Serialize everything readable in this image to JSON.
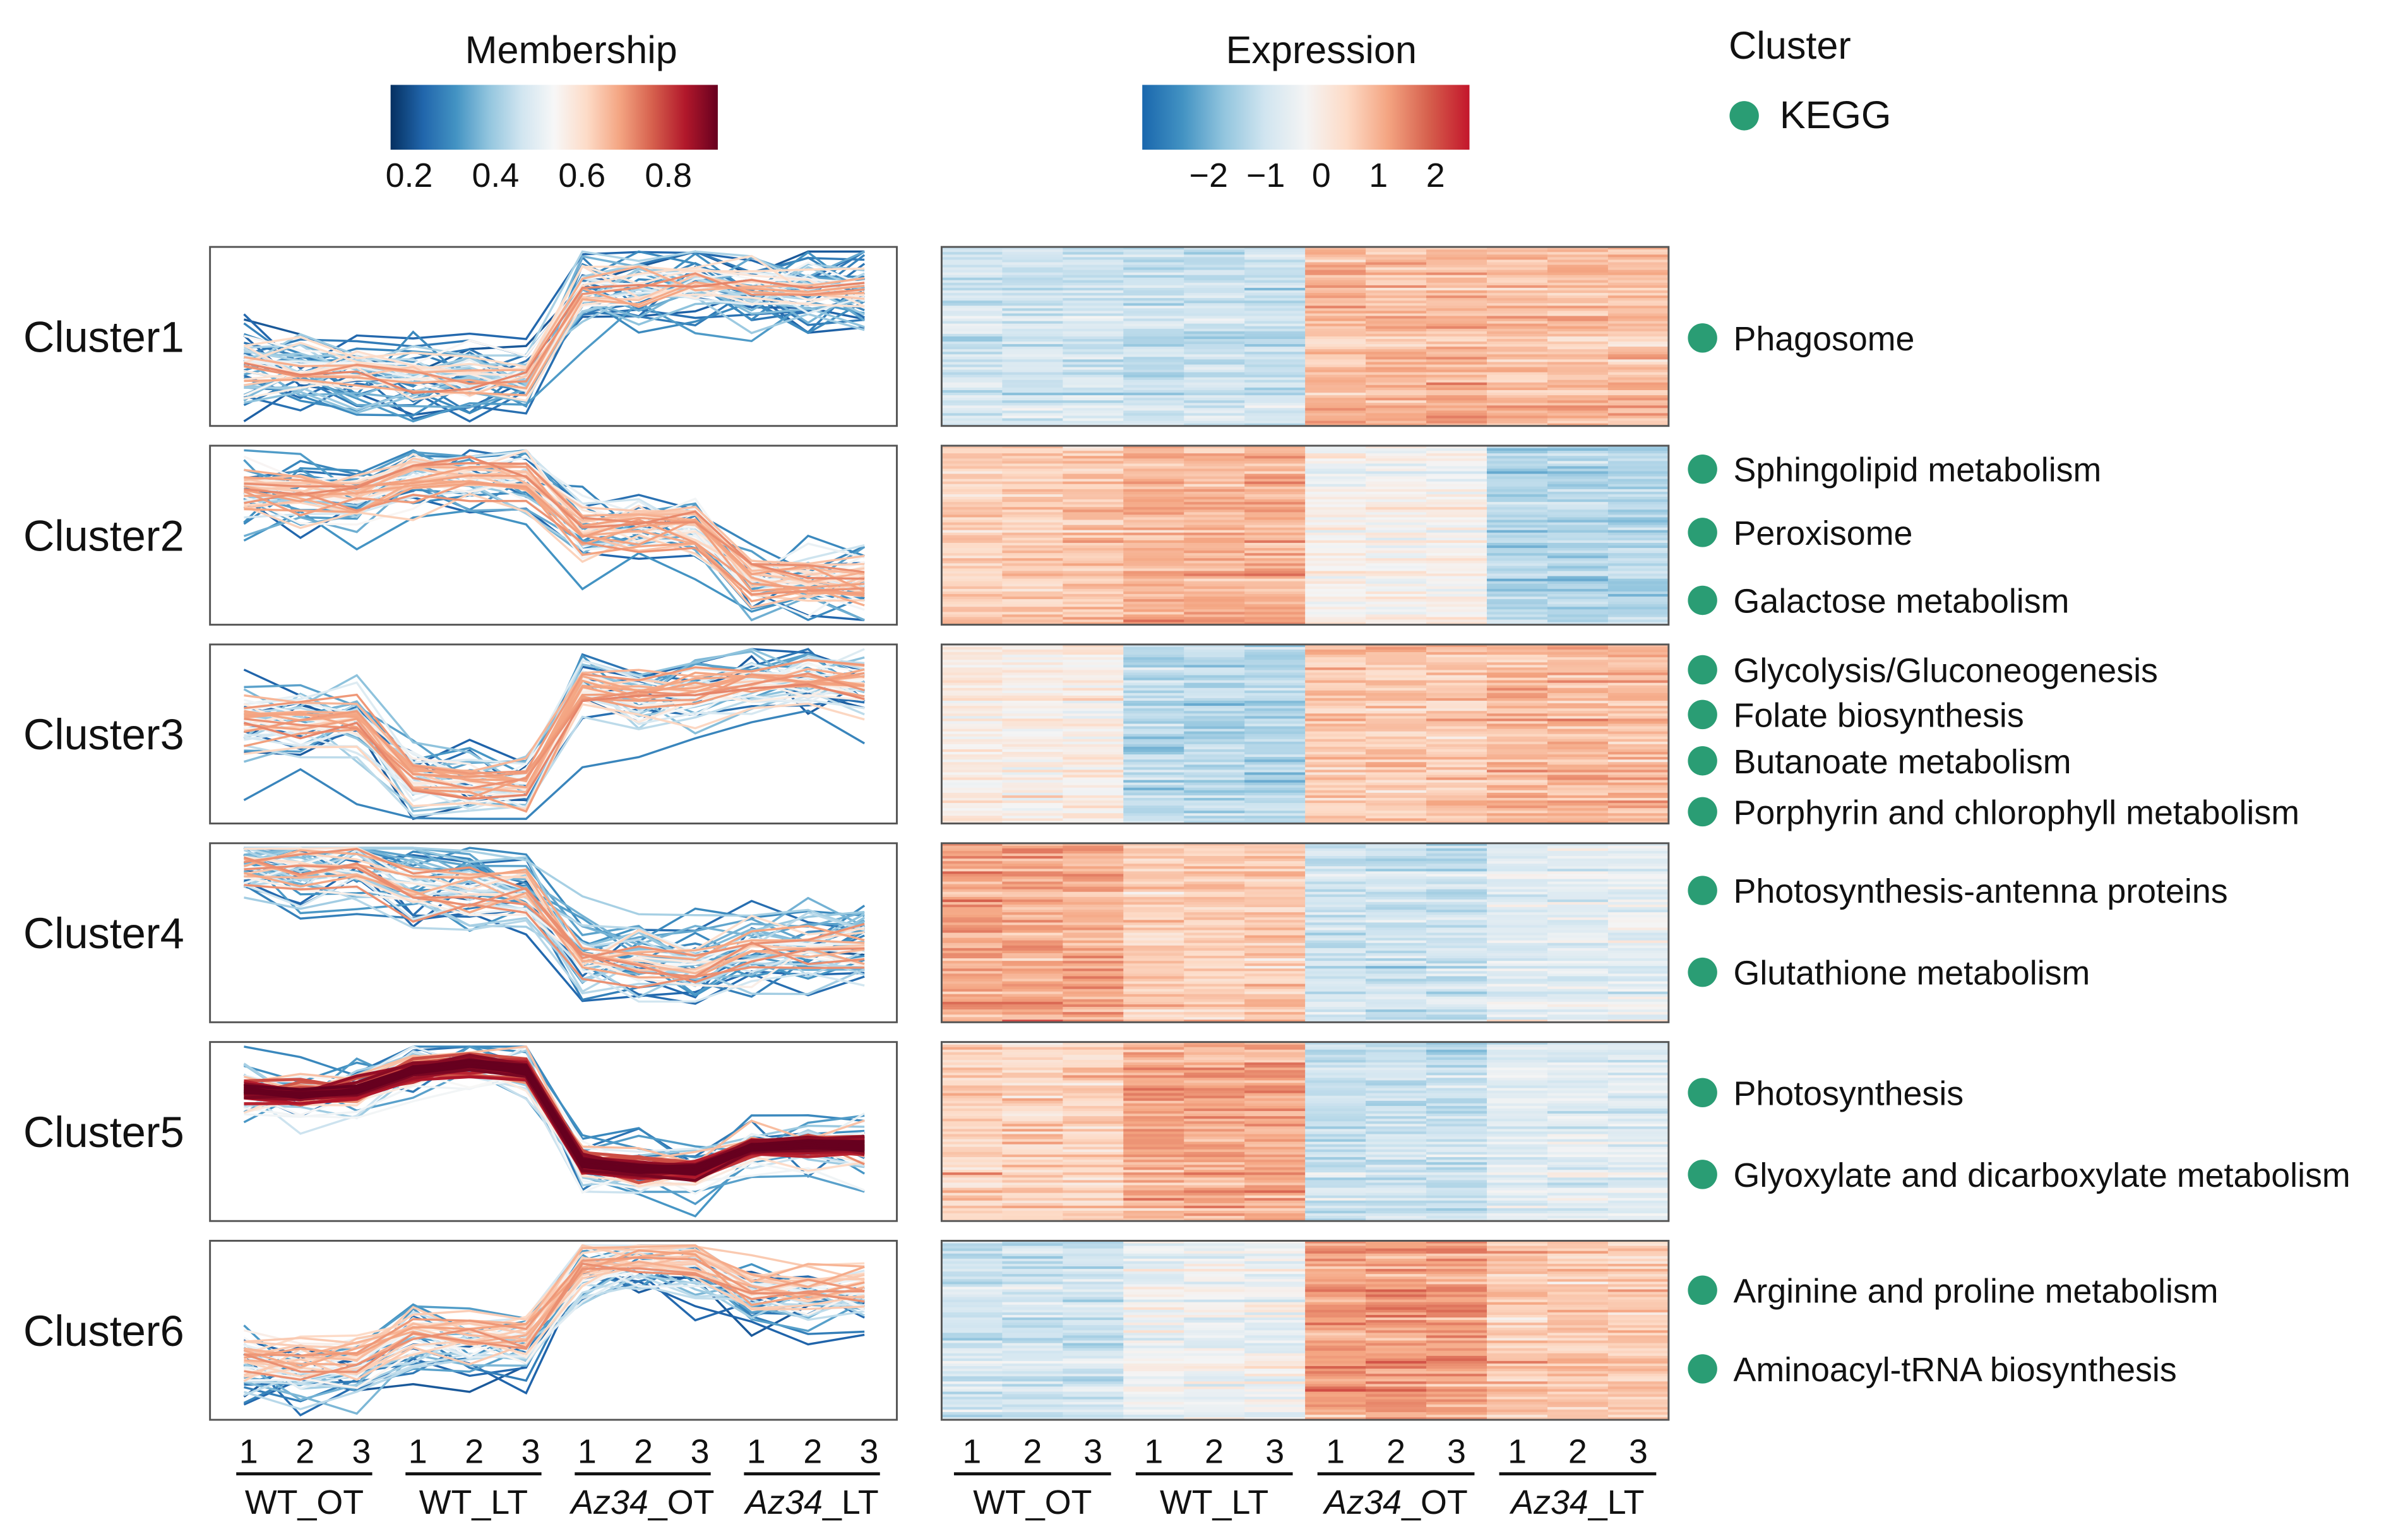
{
  "legends": {
    "membership": {
      "title": "Membership",
      "ticks": [
        "0.2",
        "0.4",
        "0.6",
        "0.8"
      ],
      "range": [
        0.1,
        0.9
      ]
    },
    "expression": {
      "title": "Expression",
      "ticks": [
        "−2",
        "−1",
        "0",
        "1",
        "2"
      ],
      "range": [
        -2.5,
        2.5
      ]
    },
    "cluster": {
      "title": "Cluster",
      "item": "KEGG"
    }
  },
  "colors": {
    "kegg_dot": "#2a9d74",
    "membership_scale": [
      "#053061",
      "#2166ac",
      "#4393c3",
      "#92c5de",
      "#d1e5f0",
      "#f7f7f7",
      "#fddbc7",
      "#f4a582",
      "#d6604d",
      "#b2182b",
      "#67001f"
    ],
    "expression_scale": [
      "#1a67ad",
      "#4393c3",
      "#92c5de",
      "#d1e5f0",
      "#f4f4f4",
      "#fddbc7",
      "#f4a582",
      "#d6604d",
      "#c3162b"
    ]
  },
  "x_axis": {
    "replicates": [
      "1",
      "2",
      "3"
    ],
    "groups": [
      {
        "prefix": "WT",
        "suffix": "_OT",
        "italic": false
      },
      {
        "prefix": "WT",
        "suffix": "_LT",
        "italic": false
      },
      {
        "prefix": "Az34",
        "suffix": "_OT",
        "italic": true
      },
      {
        "prefix": "Az34",
        "suffix": "_LT",
        "italic": true
      }
    ]
  },
  "clusters": [
    {
      "label": "Cluster1",
      "group_means": [
        -0.6,
        -0.7,
        1.0,
        0.9
      ],
      "kegg": [
        "Phagosome"
      ]
    },
    {
      "label": "Cluster2",
      "group_means": [
        0.8,
        1.1,
        0.1,
        -0.9
      ],
      "kegg": [
        "Sphingolipid metabolism",
        "Peroxisome",
        "Galactose metabolism"
      ]
    },
    {
      "label": "Cluster3",
      "group_means": [
        0.2,
        -0.9,
        0.8,
        1.0
      ],
      "kegg": [
        "Glycolysis/Gluconeogenesis",
        "Folate biosynthesis",
        "Butanoate metabolism",
        "Porphyrin and chlorophyll metabolism"
      ]
    },
    {
      "label": "Cluster4",
      "group_means": [
        1.2,
        0.8,
        -0.6,
        -0.3
      ],
      "kegg": [
        "Photosynthesis-antenna proteins",
        "Glutathione metabolism"
      ]
    },
    {
      "label": "Cluster5",
      "group_means": [
        0.7,
        1.2,
        -0.7,
        -0.3
      ],
      "kegg": [
        "Photosynthesis",
        "Glyoxylate and dicarboxylate metabolism"
      ]
    },
    {
      "label": "Cluster6",
      "group_means": [
        -0.6,
        -0.1,
        1.3,
        0.8
      ],
      "kegg": [
        "Arginine and proline metabolism",
        "Aminoacyl-tRNA biosynthesis"
      ]
    }
  ],
  "chart_data": {
    "type": "heatmap",
    "title": "",
    "xlabel": "",
    "ylabel": "",
    "categories": [
      "WT_OT 1",
      "WT_OT 2",
      "WT_OT 3",
      "WT_LT 1",
      "WT_LT 2",
      "WT_LT 3",
      "Az34_OT 1",
      "Az34_OT 2",
      "Az34_OT 3",
      "Az34_LT 1",
      "Az34_LT 2",
      "Az34_LT 3"
    ],
    "series": [
      {
        "name": "Cluster1",
        "values": [
          -0.6,
          -0.6,
          -0.6,
          -0.7,
          -0.7,
          -0.7,
          1.0,
          1.0,
          1.0,
          0.9,
          0.9,
          0.9
        ]
      },
      {
        "name": "Cluster2",
        "values": [
          0.8,
          0.8,
          0.8,
          1.1,
          1.1,
          1.1,
          0.1,
          0.1,
          0.1,
          -0.9,
          -0.9,
          -0.9
        ]
      },
      {
        "name": "Cluster3",
        "values": [
          0.2,
          0.2,
          0.2,
          -0.9,
          -0.9,
          -0.9,
          0.8,
          0.8,
          0.8,
          1.0,
          1.0,
          1.0
        ]
      },
      {
        "name": "Cluster4",
        "values": [
          1.2,
          1.2,
          1.2,
          0.8,
          0.8,
          0.8,
          -0.6,
          -0.6,
          -0.6,
          -0.3,
          -0.3,
          -0.3
        ]
      },
      {
        "name": "Cluster5",
        "values": [
          0.7,
          0.7,
          0.7,
          1.2,
          1.2,
          1.2,
          -0.7,
          -0.7,
          -0.7,
          -0.3,
          -0.3,
          -0.3
        ]
      },
      {
        "name": "Cluster6",
        "values": [
          -0.6,
          -0.6,
          -0.6,
          -0.1,
          -0.1,
          -0.1,
          1.3,
          1.3,
          1.3,
          0.8,
          0.8,
          0.8
        ]
      }
    ],
    "value_range": [
      -2.5,
      2.5
    ],
    "legend": "top"
  }
}
